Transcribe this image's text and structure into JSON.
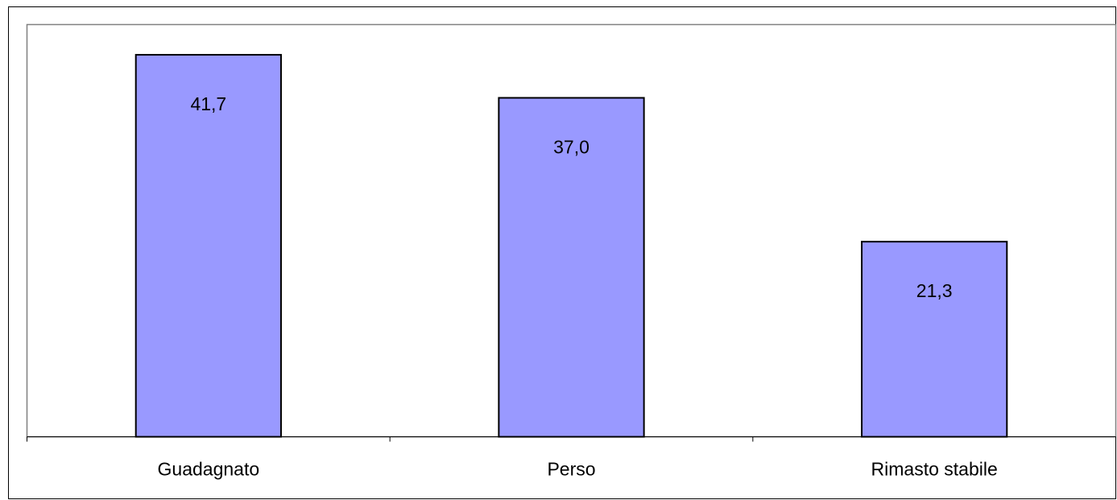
{
  "chart_data": {
    "type": "bar",
    "categories": [
      "Guadagnato",
      "Perso",
      "Rimasto stabile"
    ],
    "values": [
      41.7,
      37.0,
      21.3
    ],
    "value_labels": [
      "41,7",
      "37,0",
      "21,3"
    ],
    "title": "",
    "xlabel": "",
    "ylabel": "",
    "ylim": [
      0,
      45
    ],
    "grid": false,
    "legend": "none",
    "colors": {
      "bar_fill": "#9999ff",
      "bar_stroke": "#000000",
      "plot_background": "#ffffff",
      "plot_border": "#808080"
    }
  }
}
